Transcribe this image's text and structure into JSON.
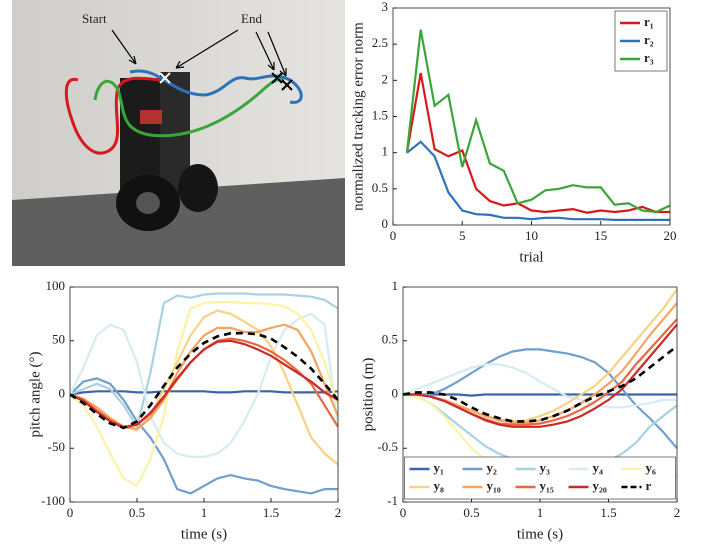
{
  "photo": {
    "annotations": [
      "Start",
      "End"
    ]
  },
  "chart_data": [
    {
      "type": "line",
      "xlabel": "trial",
      "ylabel": "normalized tracking error norm",
      "x": [
        1,
        2,
        3,
        4,
        5,
        6,
        7,
        8,
        9,
        10,
        11,
        12,
        13,
        14,
        15,
        16,
        17,
        18,
        19,
        20
      ],
      "xlim": [
        0,
        20
      ],
      "xticks": [
        0,
        5,
        10,
        15,
        20
      ],
      "ylim": [
        0,
        3
      ],
      "yticks": [
        0,
        0.5,
        1,
        1.5,
        2,
        2.5,
        3
      ],
      "legend": "upper right",
      "series": [
        {
          "name": "r₁",
          "color": "#d7191c",
          "values": [
            1.0,
            2.1,
            1.05,
            0.95,
            1.03,
            0.5,
            0.33,
            0.27,
            0.3,
            0.2,
            0.18,
            0.2,
            0.22,
            0.17,
            0.2,
            0.18,
            0.2,
            0.25,
            0.18,
            0.18
          ]
        },
        {
          "name": "r₂",
          "color": "#2b73b8",
          "values": [
            1.0,
            1.15,
            0.95,
            0.45,
            0.2,
            0.15,
            0.14,
            0.1,
            0.1,
            0.08,
            0.1,
            0.1,
            0.08,
            0.08,
            0.08,
            0.07,
            0.07,
            0.07,
            0.07,
            0.07
          ]
        },
        {
          "name": "r₃",
          "color": "#3aa63a",
          "values": [
            1.0,
            2.7,
            1.65,
            1.8,
            0.8,
            1.45,
            0.85,
            0.75,
            0.3,
            0.35,
            0.48,
            0.5,
            0.55,
            0.52,
            0.52,
            0.28,
            0.3,
            0.2,
            0.18,
            0.27
          ]
        }
      ]
    },
    {
      "type": "line",
      "xlabel": "time (s)",
      "ylabel": "pitch angle (°)",
      "x": [
        0,
        0.1,
        0.2,
        0.3,
        0.4,
        0.5,
        0.6,
        0.7,
        0.8,
        0.9,
        1,
        1.1,
        1.2,
        1.3,
        1.4,
        1.5,
        1.6,
        1.7,
        1.8,
        1.9,
        2
      ],
      "xlim": [
        0,
        2
      ],
      "xticks": [
        0,
        0.5,
        1,
        1.5,
        2
      ],
      "ylim": [
        -100,
        100
      ],
      "yticks": [
        -100,
        -50,
        0,
        50,
        100
      ],
      "series": [
        {
          "color": "#3d64a8",
          "values": [
            0,
            2,
            3,
            3,
            3,
            2,
            2,
            3,
            3,
            3,
            3,
            2,
            2,
            3,
            3,
            3,
            2,
            2,
            2,
            2,
            3
          ]
        },
        {
          "color": "#6f9fcc",
          "values": [
            0,
            12,
            15,
            10,
            -5,
            -25,
            -40,
            -60,
            -88,
            -92,
            -85,
            -78,
            -75,
            -78,
            -80,
            -85,
            -88,
            -90,
            -92,
            -88,
            -88
          ]
        },
        {
          "color": "#a8d2e2",
          "values": [
            0,
            5,
            10,
            5,
            -10,
            -30,
            20,
            85,
            92,
            90,
            93,
            94,
            94,
            94,
            93,
            93,
            93,
            92,
            91,
            88,
            80
          ]
        },
        {
          "color": "#d6ecf2",
          "values": [
            0,
            25,
            55,
            65,
            60,
            30,
            -20,
            -45,
            -55,
            -58,
            -58,
            -55,
            -45,
            -25,
            0,
            35,
            60,
            70,
            75,
            65,
            -30
          ]
        },
        {
          "color": "#fbf3a6",
          "values": [
            0,
            -10,
            -30,
            -55,
            -78,
            -85,
            -60,
            -20,
            40,
            80,
            85,
            86,
            86,
            85,
            85,
            84,
            82,
            75,
            60,
            30,
            -10
          ]
        },
        {
          "color": "#fad184",
          "values": [
            0,
            -4,
            -12,
            -22,
            -30,
            -33,
            -20,
            5,
            30,
            55,
            72,
            78,
            75,
            68,
            60,
            45,
            20,
            -10,
            -40,
            -55,
            -65
          ]
        },
        {
          "color": "#f4a460",
          "values": [
            0,
            -4,
            -12,
            -22,
            -30,
            -32,
            -22,
            -5,
            20,
            40,
            55,
            62,
            62,
            58,
            58,
            62,
            65,
            60,
            40,
            10,
            -20
          ]
        },
        {
          "color": "#e8673f",
          "values": [
            0,
            -5,
            -15,
            -24,
            -30,
            -28,
            -18,
            -3,
            14,
            30,
            42,
            50,
            52,
            50,
            46,
            40,
            32,
            22,
            10,
            -10,
            -30
          ]
        },
        {
          "color": "#cc2a2a",
          "values": [
            0,
            -6,
            -16,
            -25,
            -31,
            -28,
            -17,
            -2,
            15,
            30,
            42,
            49,
            50,
            47,
            42,
            36,
            28,
            20,
            12,
            2,
            -5
          ]
        },
        {
          "color": "#000000",
          "dashed": true,
          "values": [
            0,
            -8,
            -18,
            -27,
            -31,
            -25,
            -10,
            8,
            25,
            38,
            48,
            54,
            57,
            57,
            56,
            52,
            44,
            35,
            24,
            10,
            -5
          ]
        }
      ]
    },
    {
      "type": "line",
      "xlabel": "time (s)",
      "ylabel": "position (m)",
      "x": [
        0,
        0.1,
        0.2,
        0.3,
        0.4,
        0.5,
        0.6,
        0.7,
        0.8,
        0.9,
        1,
        1.1,
        1.2,
        1.3,
        1.4,
        1.5,
        1.6,
        1.7,
        1.8,
        1.9,
        2
      ],
      "xlim": [
        0,
        2
      ],
      "xticks": [
        0,
        0.5,
        1,
        1.5,
        2
      ],
      "ylim": [
        -1,
        1
      ],
      "yticks": [
        -1,
        -0.5,
        0,
        0.5,
        1
      ],
      "legend": "lower center",
      "series": [
        {
          "name": "y₁",
          "color": "#3d64a8",
          "values": [
            0,
            0,
            0,
            0,
            0,
            -0.01,
            0,
            0,
            0,
            0,
            0,
            0,
            0,
            0,
            0,
            0,
            0,
            0,
            0,
            0,
            0
          ]
        },
        {
          "name": "y₂",
          "color": "#6f9fcc",
          "values": [
            0,
            0,
            0,
            0.05,
            0.12,
            0.2,
            0.28,
            0.35,
            0.4,
            0.42,
            0.42,
            0.4,
            0.38,
            0.35,
            0.3,
            0.2,
            0.05,
            -0.1,
            -0.22,
            -0.35,
            -0.5
          ]
        },
        {
          "name": "y₃",
          "color": "#a8d2e2",
          "values": [
            0,
            -0.02,
            -0.08,
            -0.18,
            -0.28,
            -0.38,
            -0.48,
            -0.55,
            -0.6,
            -0.62,
            -0.64,
            -0.66,
            -0.68,
            -0.68,
            -0.66,
            -0.62,
            -0.55,
            -0.45,
            -0.3,
            -0.2,
            -0.1
          ]
        },
        {
          "name": "y₄",
          "color": "#d6ecf2",
          "values": [
            0,
            0.05,
            0.1,
            0.15,
            0.2,
            0.25,
            0.28,
            0.28,
            0.25,
            0.2,
            0.12,
            0.05,
            -0.02,
            -0.05,
            -0.1,
            -0.12,
            -0.12,
            -0.1,
            -0.08,
            -0.05,
            -0.05
          ]
        },
        {
          "name": "y₆",
          "color": "#fbf3a6",
          "values": [
            0,
            -0.02,
            -0.08,
            -0.2,
            -0.35,
            -0.5,
            -0.6,
            -0.68,
            -0.72,
            -0.73,
            -0.75,
            -0.8,
            -0.85,
            -0.88,
            -0.9,
            -0.92,
            -0.95,
            -0.93,
            -0.88,
            -0.82,
            -0.75
          ]
        },
        {
          "name": "y₈",
          "color": "#fad184",
          "values": [
            0,
            0,
            -0.02,
            -0.05,
            -0.1,
            -0.15,
            -0.2,
            -0.23,
            -0.25,
            -0.24,
            -0.2,
            -0.15,
            -0.08,
            0,
            0.08,
            0.2,
            0.35,
            0.5,
            0.65,
            0.8,
            0.98
          ]
        },
        {
          "name": "y₁₀",
          "color": "#f4a460",
          "values": [
            0,
            0,
            -0.02,
            -0.05,
            -0.1,
            -0.15,
            -0.2,
            -0.24,
            -0.26,
            -0.26,
            -0.24,
            -0.2,
            -0.15,
            -0.08,
            0,
            0.1,
            0.22,
            0.38,
            0.55,
            0.7,
            0.85
          ]
        },
        {
          "name": "y₁₅",
          "color": "#e8673f",
          "values": [
            0,
            0,
            -0.02,
            -0.06,
            -0.12,
            -0.18,
            -0.23,
            -0.27,
            -0.28,
            -0.28,
            -0.27,
            -0.24,
            -0.2,
            -0.14,
            -0.07,
            0.02,
            0.12,
            0.28,
            0.42,
            0.56,
            0.7
          ]
        },
        {
          "name": "y₂₀",
          "color": "#cc2a2a",
          "values": [
            0,
            0,
            -0.02,
            -0.06,
            -0.12,
            -0.18,
            -0.24,
            -0.28,
            -0.3,
            -0.3,
            -0.3,
            -0.28,
            -0.25,
            -0.2,
            -0.13,
            -0.05,
            0.05,
            0.2,
            0.35,
            0.5,
            0.65
          ]
        },
        {
          "name": "r",
          "color": "#000000",
          "dashed": true,
          "values": [
            0,
            0.02,
            0.02,
            0,
            -0.05,
            -0.12,
            -0.18,
            -0.22,
            -0.25,
            -0.25,
            -0.24,
            -0.2,
            -0.15,
            -0.08,
            -0.02,
            0.03,
            0.08,
            0.15,
            0.25,
            0.35,
            0.45
          ]
        }
      ]
    }
  ]
}
